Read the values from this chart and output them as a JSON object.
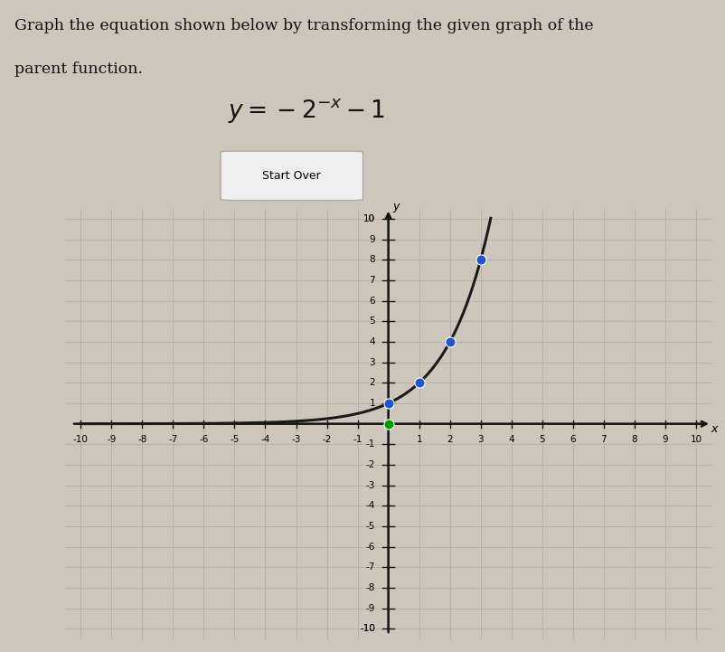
{
  "title_line1": "Graph the equation shown below by transforming the given graph of the",
  "title_line2": "parent function.",
  "equation_latex": "$y = -2^{-x} - 1$",
  "button_text": "Start Over",
  "xlim": [
    -10,
    10
  ],
  "ylim": [
    -10,
    10
  ],
  "xlabel": "x",
  "ylabel": "y",
  "background_color": "#cdc7bb",
  "graph_bg_color": "#cdc7bb",
  "grid_color": "#b8b2a5",
  "axis_color": "#111111",
  "curve_color": "#1a1a1a",
  "blue_dot_color": "#2255cc",
  "green_dot_color": "#009900",
  "blue_dots": [
    [
      0,
      1
    ],
    [
      1,
      2
    ],
    [
      2,
      4
    ],
    [
      3,
      8
    ]
  ],
  "green_dot": [
    0,
    0
  ],
  "title_fontsize": 12.5,
  "eq_fontsize": 19,
  "tick_fontsize": 7.5,
  "figsize": [
    8.03,
    7.21
  ],
  "dpi": 100
}
